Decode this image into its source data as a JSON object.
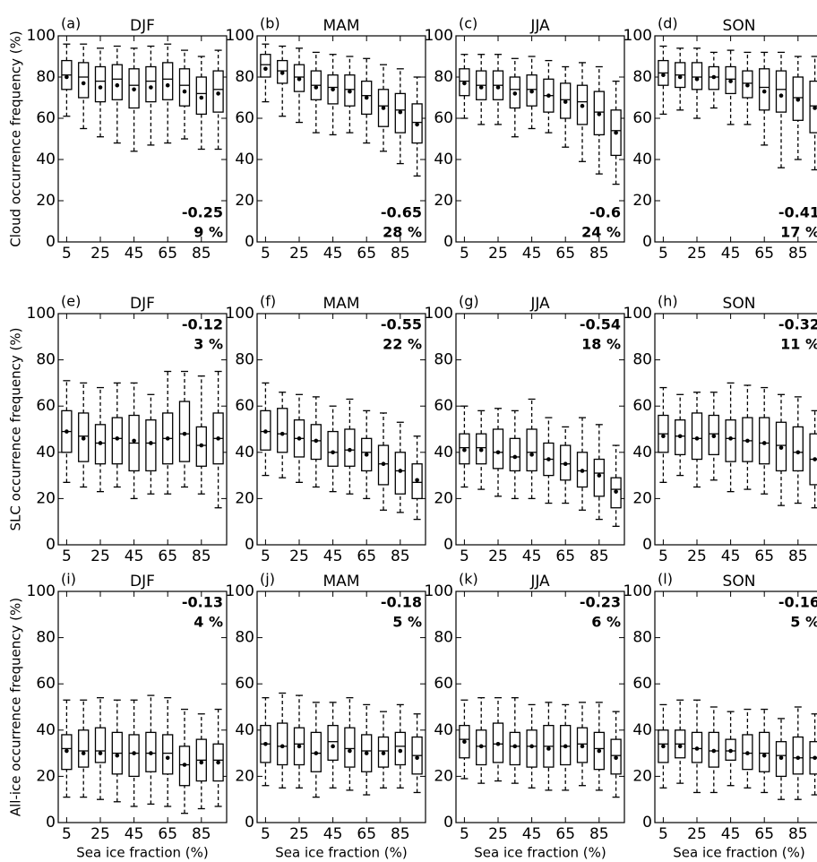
{
  "chart_data": [
    {
      "type": "box",
      "label": "(a)",
      "title": "DJF",
      "ylabel": "Cloud occurrence frequency (%)",
      "x": [
        5,
        15,
        25,
        35,
        45,
        55,
        65,
        75,
        85,
        95
      ],
      "xlim": [
        0,
        100
      ],
      "xticks": [
        5,
        25,
        45,
        65,
        85
      ],
      "ylim": [
        0,
        100
      ],
      "yticks": [
        0,
        20,
        40,
        60,
        80,
        100
      ],
      "color": "#000000",
      "whislo": [
        61,
        55,
        51,
        48,
        44,
        47,
        48,
        50,
        45,
        45
      ],
      "q1": [
        74,
        70,
        68,
        69,
        65,
        68,
        69,
        66,
        62,
        63
      ],
      "median": [
        81,
        80,
        78,
        79,
        76,
        78,
        79,
        76,
        72,
        74
      ],
      "q3": [
        88,
        87,
        85,
        86,
        84,
        85,
        87,
        84,
        80,
        83
      ],
      "whishi": [
        96,
        96,
        94,
        95,
        94,
        95,
        96,
        93,
        90,
        93
      ],
      "mean": [
        80,
        77,
        75,
        76,
        74,
        75,
        76,
        73,
        70,
        72
      ],
      "annotations": [
        "-0.25",
        "9 %"
      ],
      "annotation_position": "lower right"
    },
    {
      "type": "box",
      "label": "(b)",
      "title": "MAM",
      "x": [
        5,
        15,
        25,
        35,
        45,
        55,
        65,
        75,
        85,
        95
      ],
      "xlim": [
        0,
        100
      ],
      "xticks": [
        5,
        25,
        45,
        65,
        85
      ],
      "ylim": [
        0,
        100
      ],
      "yticks": [
        0,
        20,
        40,
        60,
        80,
        100
      ],
      "color": "#000000",
      "whislo": [
        68,
        61,
        58,
        53,
        52,
        53,
        48,
        44,
        38,
        32
      ],
      "q1": [
        80,
        77,
        73,
        69,
        67,
        66,
        62,
        56,
        53,
        48
      ],
      "median": [
        86,
        83,
        80,
        76,
        75,
        74,
        71,
        66,
        64,
        58
      ],
      "q3": [
        91,
        88,
        86,
        83,
        81,
        81,
        78,
        74,
        72,
        67
      ],
      "whishi": [
        96,
        95,
        94,
        92,
        91,
        90,
        89,
        86,
        84,
        80
      ],
      "mean": [
        84,
        82,
        79,
        75,
        74,
        73,
        70,
        65,
        63,
        57
      ],
      "annotations": [
        "-0.65",
        "28 %"
      ],
      "annotation_position": "lower right"
    },
    {
      "type": "box",
      "label": "(c)",
      "title": "JJA",
      "x": [
        5,
        15,
        25,
        35,
        45,
        55,
        65,
        75,
        85,
        95
      ],
      "xlim": [
        0,
        100
      ],
      "xticks": [
        5,
        25,
        45,
        65,
        85
      ],
      "ylim": [
        0,
        100
      ],
      "yticks": [
        0,
        20,
        40,
        60,
        80,
        100
      ],
      "color": "#000000",
      "whislo": [
        60,
        57,
        57,
        51,
        55,
        53,
        46,
        39,
        33,
        28
      ],
      "q1": [
        71,
        69,
        69,
        65,
        66,
        63,
        60,
        57,
        52,
        42
      ],
      "median": [
        78,
        76,
        76,
        74,
        74,
        71,
        69,
        68,
        63,
        54
      ],
      "q3": [
        84,
        83,
        83,
        80,
        81,
        79,
        77,
        76,
        73,
        64
      ],
      "whishi": [
        91,
        91,
        91,
        89,
        90,
        88,
        85,
        87,
        85,
        78
      ],
      "mean": [
        77,
        75,
        75,
        72,
        73,
        71,
        68,
        66,
        62,
        53
      ],
      "annotations": [
        "-0.6",
        "24 %"
      ],
      "annotation_position": "lower right"
    },
    {
      "type": "box",
      "label": "(d)",
      "title": "SON",
      "x": [
        5,
        15,
        25,
        35,
        45,
        55,
        65,
        75,
        85,
        95
      ],
      "xlim": [
        0,
        100
      ],
      "xticks": [
        5,
        25,
        45,
        65,
        85
      ],
      "ylim": [
        0,
        100
      ],
      "yticks": [
        0,
        20,
        40,
        60,
        80,
        100
      ],
      "color": "#000000",
      "whislo": [
        62,
        64,
        60,
        65,
        57,
        57,
        47,
        36,
        40,
        35
      ],
      "q1": [
        76,
        75,
        74,
        74,
        72,
        70,
        64,
        63,
        59,
        53
      ],
      "median": [
        82,
        81,
        80,
        80,
        79,
        77,
        75,
        74,
        70,
        66
      ],
      "q3": [
        88,
        87,
        87,
        85,
        85,
        83,
        84,
        83,
        80,
        78
      ],
      "whishi": [
        95,
        94,
        94,
        92,
        93,
        92,
        92,
        92,
        90,
        90
      ],
      "mean": [
        81,
        80,
        79,
        80,
        78,
        76,
        73,
        71,
        69,
        65
      ],
      "annotations": [
        "-0.41",
        "17 %"
      ],
      "annotation_position": "lower right"
    },
    {
      "type": "box",
      "label": "(e)",
      "title": "DJF",
      "ylabel": "SLC occurrence frequency (%)",
      "x": [
        5,
        15,
        25,
        35,
        45,
        55,
        65,
        75,
        85,
        95
      ],
      "xlim": [
        0,
        100
      ],
      "xticks": [
        5,
        25,
        45,
        65,
        85
      ],
      "ylim": [
        0,
        100
      ],
      "yticks": [
        0,
        20,
        40,
        60,
        80,
        100
      ],
      "color": "#000000",
      "whislo": [
        27,
        25,
        23,
        25,
        20,
        22,
        22,
        25,
        22,
        16
      ],
      "q1": [
        40,
        36,
        35,
        35,
        32,
        32,
        35,
        36,
        34,
        35
      ],
      "median": [
        49,
        47,
        44,
        46,
        44,
        44,
        46,
        48,
        43,
        46
      ],
      "q3": [
        58,
        57,
        52,
        55,
        56,
        54,
        57,
        62,
        51,
        57
      ],
      "whishi": [
        71,
        70,
        68,
        70,
        70,
        65,
        75,
        75,
        73,
        75
      ],
      "mean": [
        49,
        46,
        44,
        46,
        45,
        44,
        46,
        48,
        43,
        46
      ],
      "annotations": [
        "-0.12",
        "3 %"
      ],
      "annotation_position": "upper right"
    },
    {
      "type": "box",
      "label": "(f)",
      "title": "MAM",
      "x": [
        5,
        15,
        25,
        35,
        45,
        55,
        65,
        75,
        85,
        95
      ],
      "xlim": [
        0,
        100
      ],
      "xticks": [
        5,
        25,
        45,
        65,
        85
      ],
      "ylim": [
        0,
        100
      ],
      "yticks": [
        0,
        20,
        40,
        60,
        80,
        100
      ],
      "color": "#000000",
      "whislo": [
        30,
        29,
        27,
        25,
        23,
        22,
        20,
        15,
        14,
        11
      ],
      "q1": [
        41,
        40,
        38,
        37,
        34,
        34,
        32,
        26,
        22,
        20
      ],
      "median": [
        49,
        48,
        46,
        45,
        40,
        41,
        40,
        35,
        32,
        27
      ],
      "q3": [
        58,
        59,
        54,
        52,
        49,
        50,
        46,
        43,
        40,
        35
      ],
      "whishi": [
        70,
        66,
        65,
        64,
        60,
        63,
        58,
        57,
        53,
        47
      ],
      "mean": [
        49,
        48,
        46,
        45,
        40,
        41,
        39,
        35,
        32,
        28
      ],
      "annotations": [
        "-0.55",
        "22 %"
      ],
      "annotation_position": "upper right"
    },
    {
      "type": "box",
      "label": "(g)",
      "title": "JJA",
      "x": [
        5,
        15,
        25,
        35,
        45,
        55,
        65,
        75,
        85,
        95
      ],
      "xlim": [
        0,
        100
      ],
      "xticks": [
        5,
        25,
        45,
        65,
        85
      ],
      "ylim": [
        0,
        100
      ],
      "yticks": [
        0,
        20,
        40,
        60,
        80,
        100
      ],
      "color": "#000000",
      "whislo": [
        25,
        24,
        21,
        20,
        20,
        18,
        18,
        15,
        11,
        8
      ],
      "q1": [
        35,
        35,
        33,
        32,
        32,
        30,
        28,
        25,
        21,
        16
      ],
      "median": [
        42,
        42,
        40,
        38,
        40,
        37,
        35,
        32,
        31,
        24
      ],
      "q3": [
        48,
        48,
        50,
        46,
        50,
        44,
        43,
        40,
        37,
        29
      ],
      "whishi": [
        60,
        58,
        59,
        58,
        63,
        55,
        51,
        55,
        52,
        43
      ],
      "mean": [
        41,
        41,
        40,
        38,
        39,
        37,
        35,
        32,
        30,
        23
      ],
      "annotations": [
        "-0.54",
        "18 %"
      ],
      "annotation_position": "upper right"
    },
    {
      "type": "box",
      "label": "(h)",
      "title": "SON",
      "x": [
        5,
        15,
        25,
        35,
        45,
        55,
        65,
        75,
        85,
        95
      ],
      "xlim": [
        0,
        100
      ],
      "xticks": [
        5,
        25,
        45,
        65,
        85
      ],
      "ylim": [
        0,
        100
      ],
      "yticks": [
        0,
        20,
        40,
        60,
        80,
        100
      ],
      "color": "#000000",
      "whislo": [
        27,
        30,
        25,
        28,
        23,
        24,
        22,
        17,
        18,
        16
      ],
      "q1": [
        40,
        39,
        37,
        39,
        36,
        36,
        35,
        32,
        32,
        26
      ],
      "median": [
        48,
        47,
        46,
        48,
        46,
        45,
        44,
        43,
        40,
        37
      ],
      "q3": [
        56,
        54,
        57,
        56,
        54,
        55,
        55,
        53,
        51,
        48
      ],
      "whishi": [
        68,
        65,
        66,
        66,
        70,
        69,
        68,
        65,
        64,
        58
      ],
      "mean": [
        47,
        47,
        46,
        47,
        46,
        45,
        44,
        42,
        40,
        37
      ],
      "annotations": [
        "-0.32",
        "11 %"
      ],
      "annotation_position": "upper right"
    },
    {
      "type": "box",
      "label": "(i)",
      "title": "DJF",
      "ylabel": "All-ice occurrence frequency (%)",
      "xlabel": "Sea ice fraction (%)",
      "x": [
        5,
        15,
        25,
        35,
        45,
        55,
        65,
        75,
        85,
        95
      ],
      "xlim": [
        0,
        100
      ],
      "xticks": [
        5,
        25,
        45,
        65,
        85
      ],
      "ylim": [
        0,
        100
      ],
      "yticks": [
        0,
        20,
        40,
        60,
        80,
        100
      ],
      "color": "#000000",
      "whislo": [
        11,
        11,
        10,
        9,
        7,
        8,
        7,
        4,
        6,
        7
      ],
      "q1": [
        23,
        24,
        26,
        21,
        20,
        22,
        21,
        16,
        18,
        18
      ],
      "median": [
        32,
        31,
        31,
        30,
        30,
        30,
        30,
        25,
        27,
        27
      ],
      "q3": [
        38,
        40,
        41,
        39,
        38,
        39,
        38,
        33,
        36,
        34
      ],
      "whishi": [
        53,
        53,
        54,
        53,
        53,
        55,
        54,
        49,
        47,
        49
      ],
      "mean": [
        31,
        30,
        30,
        29,
        30,
        30,
        28,
        25,
        26,
        26
      ],
      "annotations": [
        "-0.13",
        "4 %"
      ],
      "annotation_position": "upper right"
    },
    {
      "type": "box",
      "label": "(j)",
      "title": "MAM",
      "xlabel": "Sea ice fraction (%)",
      "x": [
        5,
        15,
        25,
        35,
        45,
        55,
        65,
        75,
        85,
        95
      ],
      "xlim": [
        0,
        100
      ],
      "xticks": [
        5,
        25,
        45,
        65,
        85
      ],
      "ylim": [
        0,
        100
      ],
      "yticks": [
        0,
        20,
        40,
        60,
        80,
        100
      ],
      "color": "#000000",
      "whislo": [
        16,
        15,
        15,
        11,
        15,
        14,
        12,
        15,
        15,
        13
      ],
      "q1": [
        26,
        25,
        25,
        22,
        27,
        24,
        22,
        24,
        25,
        21
      ],
      "median": [
        34,
        33,
        34,
        30,
        35,
        32,
        31,
        31,
        33,
        29
      ],
      "q3": [
        42,
        43,
        41,
        39,
        42,
        41,
        38,
        37,
        39,
        37
      ],
      "whishi": [
        54,
        56,
        55,
        52,
        52,
        54,
        51,
        48,
        51,
        47
      ],
      "mean": [
        34,
        33,
        33,
        30,
        33,
        31,
        30,
        30,
        31,
        28
      ],
      "annotations": [
        "-0.18",
        "5 %"
      ],
      "annotation_position": "upper right"
    },
    {
      "type": "box",
      "label": "(k)",
      "title": "JJA",
      "xlabel": "Sea ice fraction (%)",
      "x": [
        5,
        15,
        25,
        35,
        45,
        55,
        65,
        75,
        85,
        95
      ],
      "xlim": [
        0,
        100
      ],
      "xticks": [
        5,
        25,
        45,
        65,
        85
      ],
      "ylim": [
        0,
        100
      ],
      "yticks": [
        0,
        20,
        40,
        60,
        80,
        100
      ],
      "color": "#000000",
      "whislo": [
        19,
        17,
        18,
        17,
        15,
        14,
        14,
        16,
        14,
        11
      ],
      "q1": [
        28,
        25,
        26,
        25,
        24,
        24,
        25,
        26,
        23,
        21
      ],
      "median": [
        36,
        33,
        34,
        33,
        33,
        33,
        33,
        34,
        32,
        29
      ],
      "q3": [
        42,
        40,
        43,
        39,
        40,
        42,
        42,
        41,
        39,
        36
      ],
      "whishi": [
        53,
        54,
        54,
        54,
        51,
        52,
        51,
        52,
        52,
        48
      ],
      "mean": [
        35,
        33,
        34,
        33,
        33,
        32,
        33,
        33,
        31,
        28
      ],
      "annotations": [
        "-0.23",
        "6 %"
      ],
      "annotation_position": "upper right"
    },
    {
      "type": "box",
      "label": "(l)",
      "title": "SON",
      "xlabel": "Sea ice fraction (%)",
      "x": [
        5,
        15,
        25,
        35,
        45,
        55,
        65,
        75,
        85,
        95
      ],
      "xlim": [
        0,
        100
      ],
      "xticks": [
        5,
        25,
        45,
        65,
        85
      ],
      "ylim": [
        0,
        100
      ],
      "yticks": [
        0,
        20,
        40,
        60,
        80,
        100
      ],
      "color": "#000000",
      "whislo": [
        15,
        17,
        13,
        13,
        16,
        15,
        13,
        10,
        10,
        12
      ],
      "q1": [
        26,
        28,
        26,
        24,
        27,
        23,
        22,
        20,
        21,
        21
      ],
      "median": [
        34,
        34,
        32,
        31,
        31,
        30,
        30,
        29,
        28,
        28
      ],
      "q3": [
        40,
        40,
        39,
        39,
        36,
        38,
        39,
        35,
        37,
        35
      ],
      "whishi": [
        51,
        53,
        53,
        50,
        48,
        49,
        49,
        45,
        50,
        47
      ],
      "mean": [
        33,
        33,
        32,
        31,
        31,
        30,
        29,
        28,
        28,
        28
      ],
      "annotations": [
        "-0.16",
        "5 %"
      ],
      "annotation_position": "upper right"
    }
  ]
}
